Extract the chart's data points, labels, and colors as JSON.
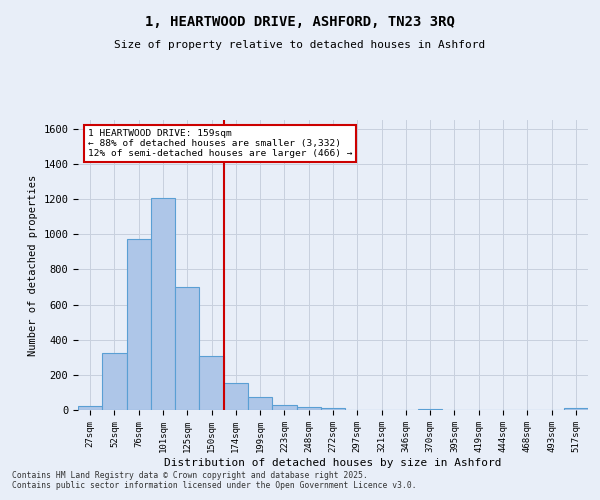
{
  "title": "1, HEARTWOOD DRIVE, ASHFORD, TN23 3RQ",
  "subtitle": "Size of property relative to detached houses in Ashford",
  "xlabel": "Distribution of detached houses by size in Ashford",
  "ylabel": "Number of detached properties",
  "bar_labels": [
    "27sqm",
    "52sqm",
    "76sqm",
    "101sqm",
    "125sqm",
    "150sqm",
    "174sqm",
    "199sqm",
    "223sqm",
    "248sqm",
    "272sqm",
    "297sqm",
    "321sqm",
    "346sqm",
    "370sqm",
    "395sqm",
    "419sqm",
    "444sqm",
    "468sqm",
    "493sqm",
    "517sqm"
  ],
  "bar_values": [
    22,
    325,
    975,
    1205,
    700,
    305,
    155,
    75,
    27,
    15,
    12,
    0,
    0,
    0,
    8,
    0,
    0,
    0,
    0,
    0,
    12
  ],
  "bar_color": "#aec6e8",
  "bar_edge_color": "#5a9fd4",
  "vline_x": 5.5,
  "vline_color": "#cc0000",
  "annotation_title": "1 HEARTWOOD DRIVE: 159sqm",
  "annotation_line1": "← 88% of detached houses are smaller (3,332)",
  "annotation_line2": "12% of semi-detached houses are larger (466) →",
  "annotation_box_color": "#ffffff",
  "annotation_box_edge": "#cc0000",
  "ylim": [
    0,
    1650
  ],
  "yticks": [
    0,
    200,
    400,
    600,
    800,
    1000,
    1200,
    1400,
    1600
  ],
  "grid_color": "#c8d0de",
  "bg_color": "#e8eef8",
  "footer1": "Contains HM Land Registry data © Crown copyright and database right 2025.",
  "footer2": "Contains public sector information licensed under the Open Government Licence v3.0."
}
